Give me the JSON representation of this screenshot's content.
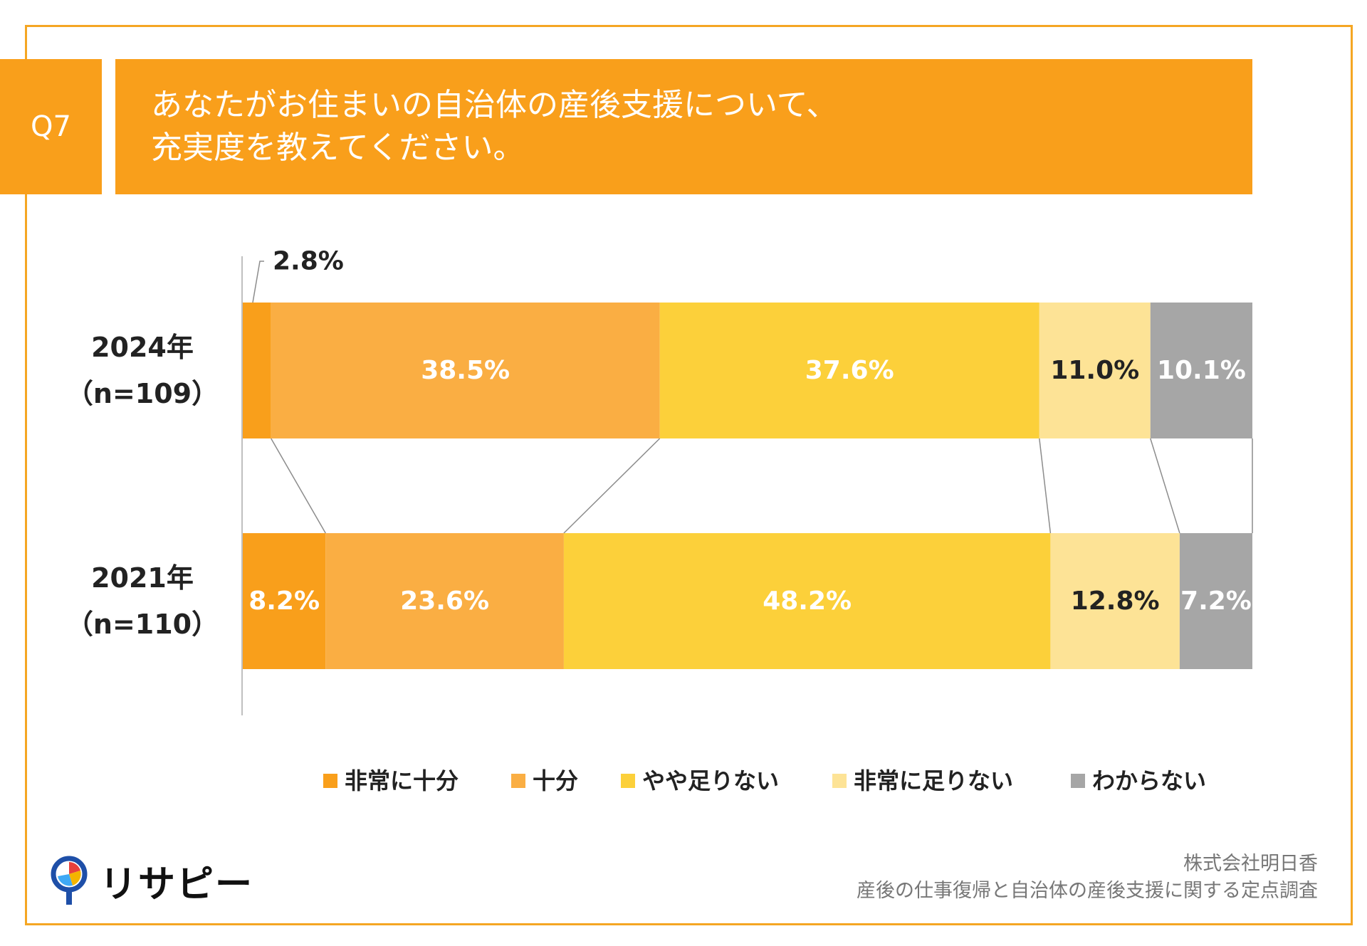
{
  "header": {
    "q_label": "Q7",
    "title_line1": "あなたがお住まいの自治体の産後支援について、",
    "title_line2": "充実度を教えてください。",
    "accent_color": "#F99F1B"
  },
  "chart_data": {
    "type": "stacked-bar-horizontal",
    "categories": [
      "非常に十分",
      "十分",
      "やや足りない",
      "非常に足りない",
      "わからない"
    ],
    "colors": [
      "#F99F1B",
      "#FAAE43",
      "#FCD03A",
      "#FDE396",
      "#A6A6A6"
    ],
    "label_colors": [
      "#ffffff",
      "#ffffff",
      "#ffffff",
      "#222222",
      "#ffffff"
    ],
    "bars": [
      {
        "label_year": "2024年",
        "label_n": "（n=109）",
        "values": [
          2.8,
          38.5,
          37.6,
          11.0,
          10.1
        ],
        "labels": [
          "2.8%",
          "38.5%",
          "37.6%",
          "11.0%",
          "10.1%"
        ]
      },
      {
        "label_year": "2021年",
        "label_n": "（n=110）",
        "values": [
          8.2,
          23.6,
          48.2,
          12.8,
          7.2
        ],
        "labels": [
          "8.2%",
          "23.6%",
          "48.2%",
          "12.8%",
          "7.2%"
        ]
      }
    ],
    "xlim": [
      0,
      100
    ],
    "legend_position": "bottom"
  },
  "footer": {
    "logo_text": "リサピー",
    "credit_line1": "株式会社明日香",
    "credit_line2": "産後の仕事復帰と自治体の産後支援に関する定点調査"
  }
}
